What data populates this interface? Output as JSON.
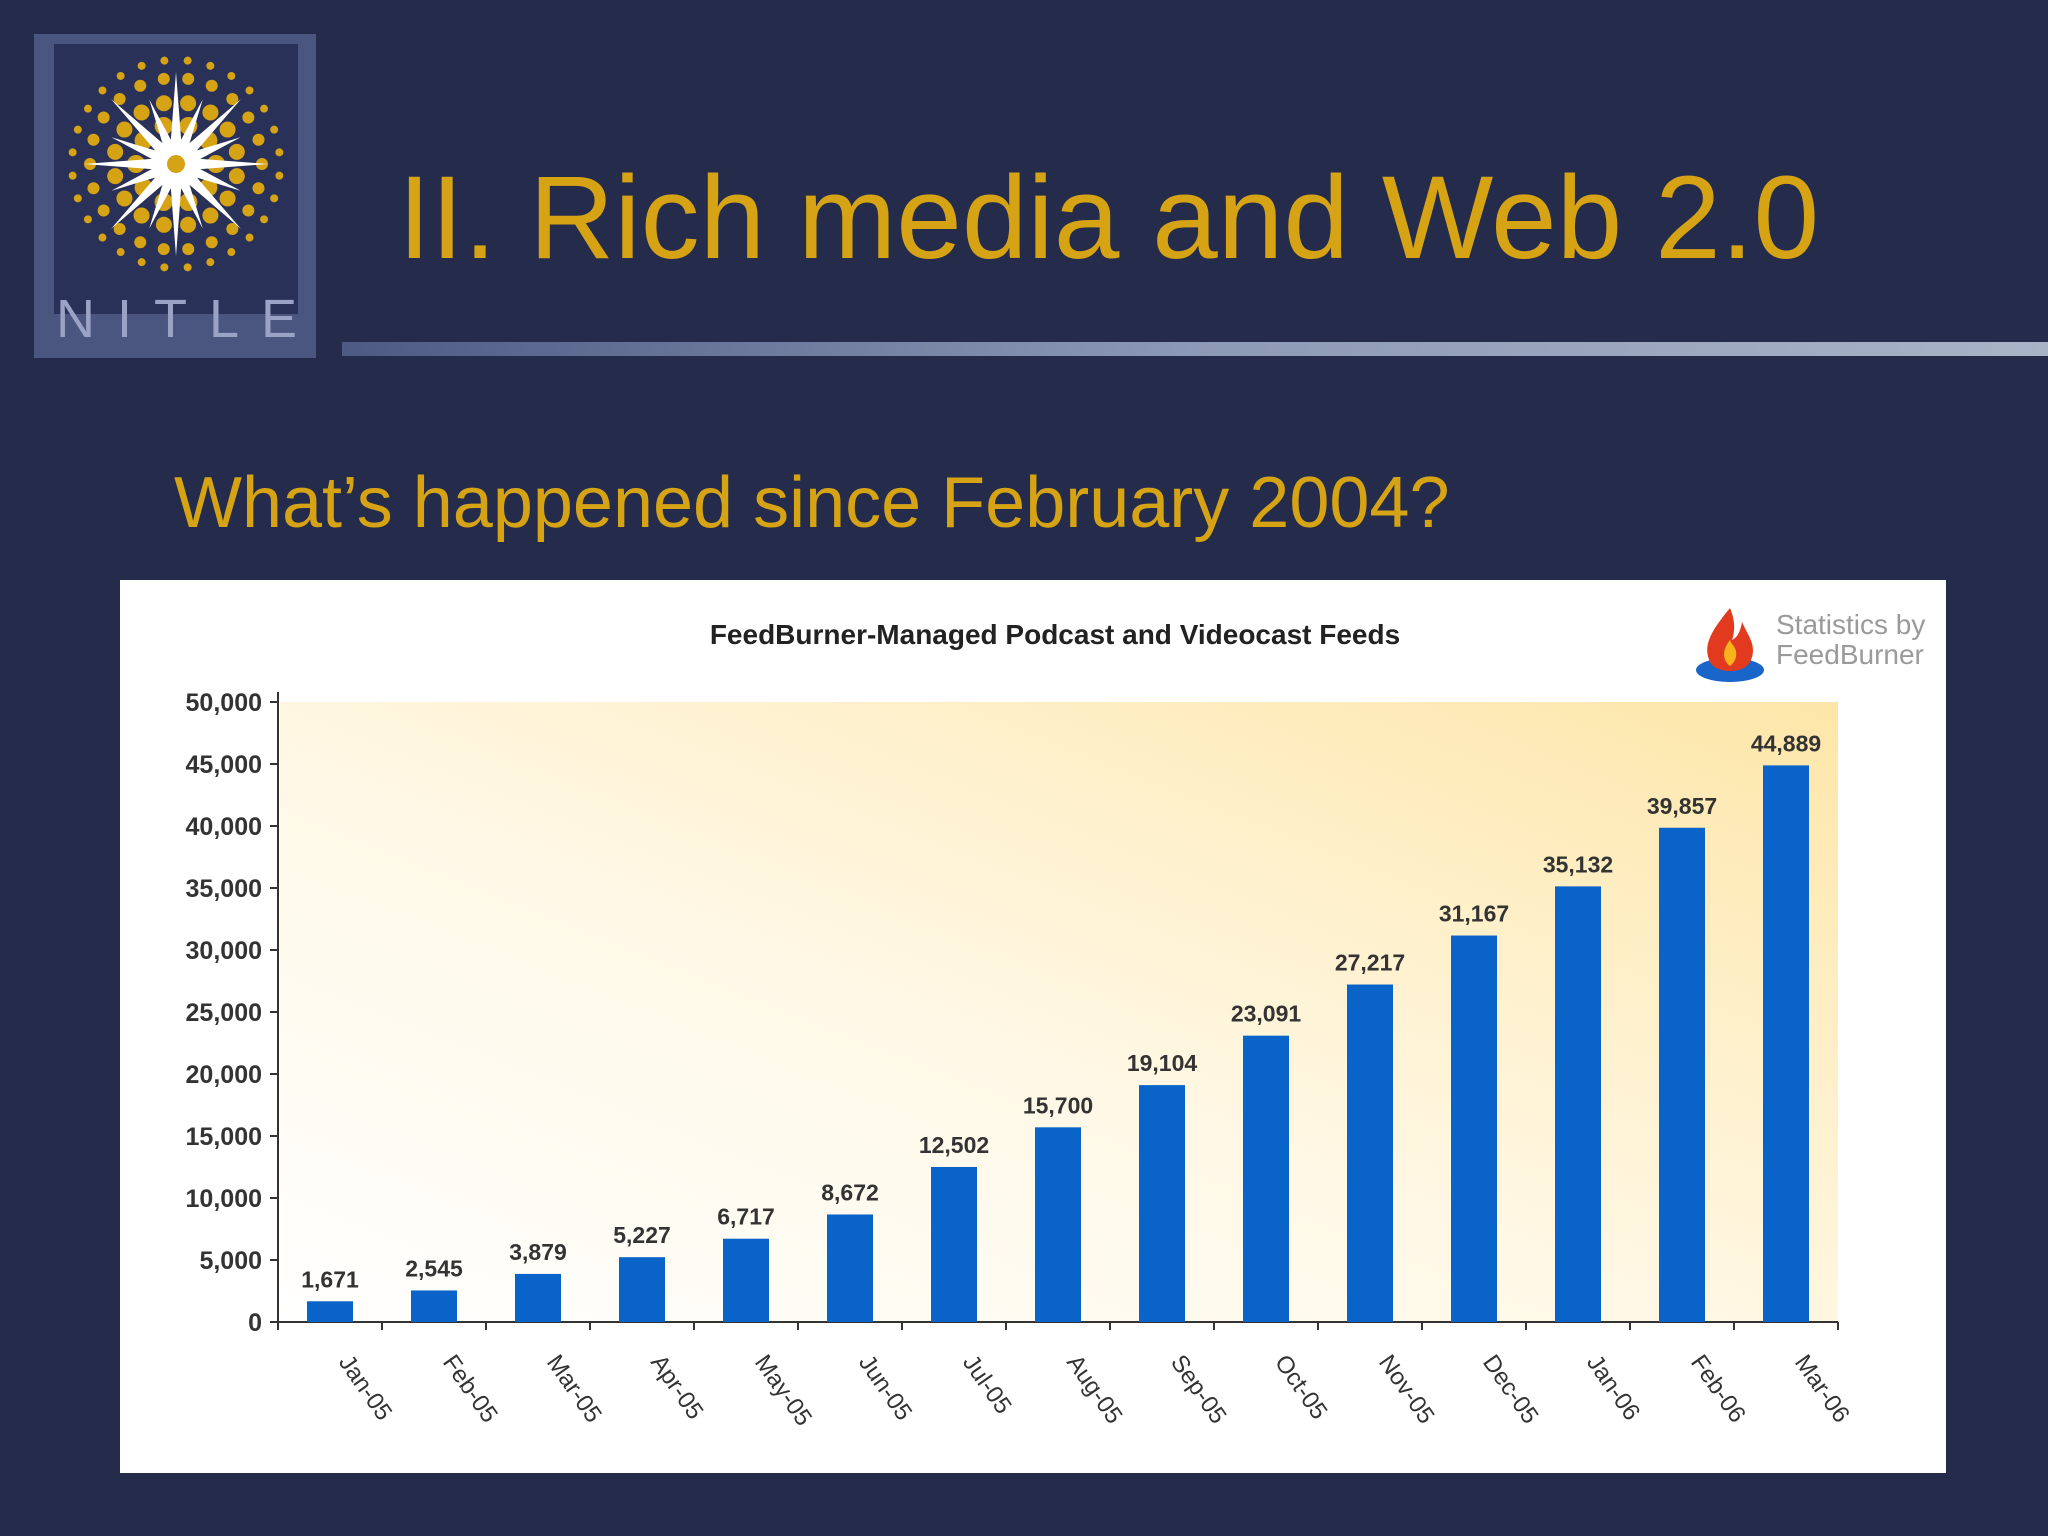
{
  "slide": {
    "title": "II. Rich media and Web 2.0",
    "subtitle": "What’s happened since February 2004?",
    "logo_text": "NITLE"
  },
  "brand": {
    "line1": "Statistics by",
    "line2": "FeedBurner"
  },
  "colors": {
    "background": "#252c4b",
    "title": "#d6a314",
    "bar": "#0a63c9"
  },
  "chart_data": {
    "type": "bar",
    "title": "FeedBurner-Managed Podcast and Videocast Feeds",
    "categories": [
      "Jan-05",
      "Feb-05",
      "Mar-05",
      "Apr-05",
      "May-05",
      "Jun-05",
      "Jul-05",
      "Aug-05",
      "Sep-05",
      "Oct-05",
      "Nov-05",
      "Dec-05",
      "Jan-06",
      "Feb-06",
      "Mar-06"
    ],
    "values": [
      1671,
      2545,
      3879,
      5227,
      6717,
      8672,
      12502,
      15700,
      19104,
      23091,
      27217,
      31167,
      35132,
      39857,
      44889
    ],
    "value_labels": [
      "1,671",
      "2,545",
      "3,879",
      "5,227",
      "6,717",
      "8,672",
      "12,502",
      "15,700",
      "19,104",
      "23,091",
      "27,217",
      "31,167",
      "35,132",
      "39,857",
      "44,889"
    ],
    "y_ticks": [
      "0",
      "5,000",
      "10,000",
      "15,000",
      "20,000",
      "25,000",
      "30,000",
      "35,000",
      "40,000",
      "45,000",
      "50,000"
    ],
    "ylim": [
      0,
      50000
    ],
    "xlabel": "",
    "ylabel": "",
    "grid": false,
    "legend": "none"
  }
}
